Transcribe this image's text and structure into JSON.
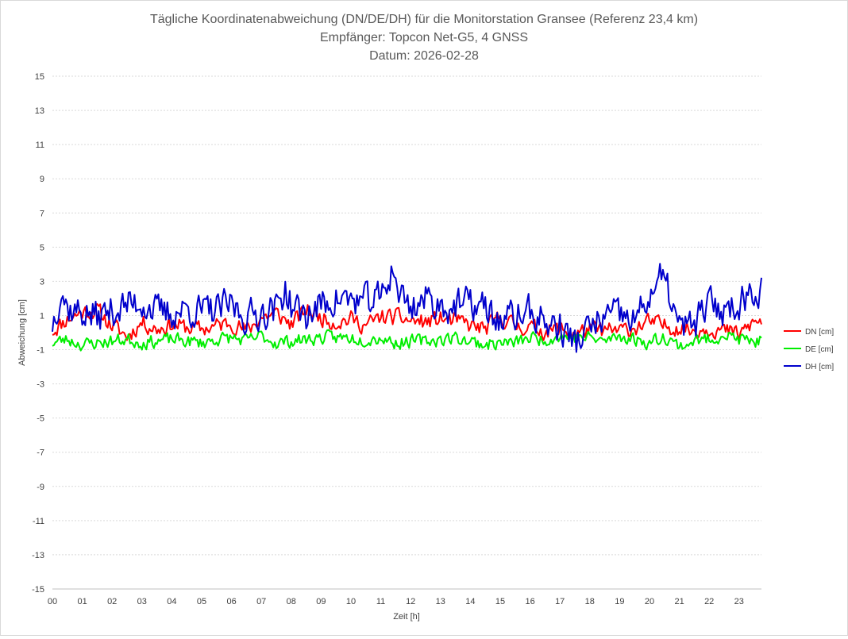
{
  "chart_data": {
    "type": "line",
    "title": "Tägliche Koordinatenabweichung (DN/DE/DH) für die Monitorstation Gransee (Referenz 23,4 km)",
    "subtitle": "Empfänger: Topcon Net-G5, 4 GNSS",
    "date_line": "Datum: 2026-02-28",
    "xlabel": "Zeit [h]",
    "ylabel": "Abweichung [cm]",
    "xlim": [
      0,
      23.75
    ],
    "ylim": [
      -15,
      15
    ],
    "x_ticks": [
      "00",
      "01",
      "02",
      "03",
      "04",
      "05",
      "06",
      "07",
      "08",
      "09",
      "10",
      "11",
      "12",
      "13",
      "14",
      "15",
      "16",
      "17",
      "18",
      "19",
      "20",
      "21",
      "22",
      "23"
    ],
    "y_ticks": [
      "15",
      "13",
      "11",
      "9",
      "7",
      "5",
      "3",
      "1",
      "-1",
      "-3",
      "-5",
      "-7",
      "-9",
      "-11",
      "-13",
      "-15"
    ],
    "y_tick_values": [
      15,
      13,
      11,
      9,
      7,
      5,
      3,
      1,
      -1,
      -3,
      -5,
      -7,
      -9,
      -11,
      -13,
      -15
    ],
    "grid": true,
    "legend_position": "right",
    "sample_interval_h": 0.05,
    "series": [
      {
        "name": "DN [cm]",
        "color": "#ff0000",
        "anchors": [
          [
            0,
            0.1
          ],
          [
            0.5,
            0.8
          ],
          [
            1,
            1.2
          ],
          [
            1.5,
            1.3
          ],
          [
            2,
            0.4
          ],
          [
            2.5,
            -0.2
          ],
          [
            3,
            0.6
          ],
          [
            3.5,
            0.2
          ],
          [
            4,
            0.5
          ],
          [
            4.5,
            0.3
          ],
          [
            5,
            0.2
          ],
          [
            5.5,
            0.4
          ],
          [
            6,
            0.6
          ],
          [
            6.5,
            0.1
          ],
          [
            7,
            0.9
          ],
          [
            7.5,
            1.1
          ],
          [
            8,
            0.5
          ],
          [
            8.5,
            1.3
          ],
          [
            9,
            0.9
          ],
          [
            9.5,
            0.6
          ],
          [
            10,
            0.8
          ],
          [
            10.5,
            0.4
          ],
          [
            11,
            0.9
          ],
          [
            11.5,
            0.9
          ],
          [
            12,
            0.7
          ],
          [
            12.5,
            0.6
          ],
          [
            13,
            0.8
          ],
          [
            13.5,
            0.7
          ],
          [
            14,
            0.4
          ],
          [
            14.5,
            0.2
          ],
          [
            15,
            0.9
          ],
          [
            15.5,
            0.4
          ],
          [
            16,
            0.3
          ],
          [
            16.5,
            0.1
          ],
          [
            17,
            0.2
          ],
          [
            17.5,
            -0.1
          ],
          [
            18,
            0.2
          ],
          [
            18.5,
            0.1
          ],
          [
            19,
            0.1
          ],
          [
            19.5,
            0.3
          ],
          [
            20,
            0.6
          ],
          [
            20.5,
            0.4
          ],
          [
            21,
            0.3
          ],
          [
            21.5,
            0.1
          ],
          [
            22,
            0.3
          ],
          [
            22.5,
            0.1
          ],
          [
            23,
            -0.1
          ],
          [
            23.5,
            0.6
          ]
        ],
        "noise": 0.45,
        "seed": 11
      },
      {
        "name": "DE [cm]",
        "color": "#00ee00",
        "anchors": [
          [
            0,
            -0.6
          ],
          [
            0.5,
            -0.4
          ],
          [
            1,
            -0.7
          ],
          [
            1.5,
            -0.6
          ],
          [
            2,
            -0.5
          ],
          [
            2.5,
            -0.4
          ],
          [
            3,
            -0.6
          ],
          [
            3.5,
            -0.5
          ],
          [
            4,
            -0.4
          ],
          [
            4.5,
            -0.5
          ],
          [
            5,
            -0.6
          ],
          [
            5.5,
            -0.4
          ],
          [
            6,
            -0.3
          ],
          [
            6.5,
            -0.5
          ],
          [
            7,
            -0.2
          ],
          [
            7.5,
            -0.6
          ],
          [
            8,
            -0.5
          ],
          [
            8.5,
            -0.4
          ],
          [
            9,
            -0.3
          ],
          [
            9.5,
            -0.3
          ],
          [
            10,
            -0.3
          ],
          [
            10.5,
            -0.4
          ],
          [
            11,
            -0.3
          ],
          [
            11.5,
            -0.6
          ],
          [
            12,
            -0.5
          ],
          [
            12.5,
            -0.5
          ],
          [
            13,
            -0.4
          ],
          [
            13.5,
            -0.3
          ],
          [
            14,
            -0.5
          ],
          [
            14.5,
            -0.7
          ],
          [
            15,
            -0.6
          ],
          [
            15.5,
            -0.6
          ],
          [
            16,
            -0.3
          ],
          [
            16.5,
            -0.4
          ],
          [
            17,
            -0.2
          ],
          [
            17.5,
            -0.3
          ],
          [
            18,
            -0.3
          ],
          [
            18.5,
            -0.5
          ],
          [
            19,
            -0.2
          ],
          [
            19.5,
            -0.4
          ],
          [
            20,
            -0.6
          ],
          [
            20.5,
            -0.2
          ],
          [
            21,
            -0.8
          ],
          [
            21.5,
            -0.5
          ],
          [
            22,
            -0.4
          ],
          [
            22.5,
            -0.1
          ],
          [
            23,
            -0.4
          ],
          [
            23.5,
            -0.5
          ]
        ],
        "noise": 0.35,
        "seed": 23
      },
      {
        "name": "DH [cm]",
        "color": "#0000cc",
        "anchors": [
          [
            0,
            0.5
          ],
          [
            0.3,
            2.6
          ],
          [
            0.5,
            1.4
          ],
          [
            1,
            1.2
          ],
          [
            1.5,
            0.9
          ],
          [
            2,
            1.3
          ],
          [
            2.5,
            1.6
          ],
          [
            3,
            1.8
          ],
          [
            3.5,
            1.2
          ],
          [
            4,
            1.1
          ],
          [
            4.5,
            1.4
          ],
          [
            5,
            1.2
          ],
          [
            5.5,
            1.3
          ],
          [
            6,
            1.6
          ],
          [
            6.5,
            0.9
          ],
          [
            7,
            1.2
          ],
          [
            7.5,
            1.4
          ],
          [
            7.8,
            2.6
          ],
          [
            8,
            1.5
          ],
          [
            8.5,
            1.0
          ],
          [
            9,
            1.6
          ],
          [
            9.5,
            2.0
          ],
          [
            10,
            1.9
          ],
          [
            10.5,
            1.8
          ],
          [
            11,
            2.0
          ],
          [
            11.4,
            3.8
          ],
          [
            11.6,
            2.4
          ],
          [
            12,
            1.5
          ],
          [
            12.5,
            2.0
          ],
          [
            13,
            1.6
          ],
          [
            13.5,
            1.5
          ],
          [
            14,
            1.7
          ],
          [
            14.5,
            1.4
          ],
          [
            15,
            0.6
          ],
          [
            15.5,
            1.0
          ],
          [
            16,
            1.2
          ],
          [
            16.5,
            0.6
          ],
          [
            17,
            0.3
          ],
          [
            17.5,
            -0.6
          ],
          [
            18,
            0.2
          ],
          [
            18.5,
            0.9
          ],
          [
            19,
            1.0
          ],
          [
            19.5,
            0.6
          ],
          [
            20,
            2.2
          ],
          [
            20.4,
            3.2
          ],
          [
            20.7,
            2.1
          ],
          [
            21,
            0.2
          ],
          [
            21.5,
            0.5
          ],
          [
            22,
            1.7
          ],
          [
            22.5,
            1.3
          ],
          [
            23,
            1.8
          ],
          [
            23.5,
            2.6
          ]
        ],
        "noise": 0.9,
        "seed": 37
      }
    ]
  }
}
